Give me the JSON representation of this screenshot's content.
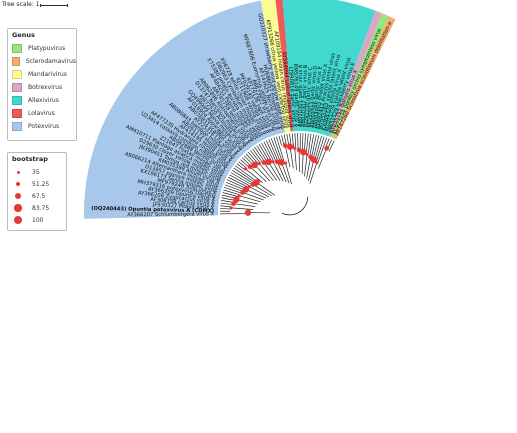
{
  "tree_scale": {
    "label": "Tree scale: 1"
  },
  "genus_legend": {
    "title": "Genus",
    "items": [
      {
        "label": "Platypuvirus",
        "color": "#98e67f"
      },
      {
        "label": "Sclerodamavirus",
        "color": "#f6ad6e"
      },
      {
        "label": "Mandarivirus",
        "color": "#fcfc94"
      },
      {
        "label": "Botrexvirus",
        "color": "#d7a7c5"
      },
      {
        "label": "Allexivirus",
        "color": "#41d8d0"
      },
      {
        "label": "Lolavirus",
        "color": "#ec5a5a"
      },
      {
        "label": "Potexvirus",
        "color": "#a7c8ea"
      }
    ]
  },
  "bootstrap_legend": {
    "title": "bootstrap",
    "items": [
      {
        "label": "35",
        "value": 35
      },
      {
        "label": "51.25",
        "value": 51.25
      },
      {
        "label": "67.5",
        "value": 67.5
      },
      {
        "label": "83.75",
        "value": 83.75
      },
      {
        "label": "100",
        "value": 100
      }
    ]
  },
  "colors": {
    "node": "#e53935",
    "branch": "#222222"
  },
  "highlighted_taxon": "(OQ240443) Opuntia potexvirus A (CDMX)",
  "taxa": [
    {
      "label": "AY366207 Schlumbergera virus X",
      "genus": "Potexvirus"
    },
    {
      "label": "(OQ240443) Opuntia potexvirus A (CDMX)",
      "genus": "Potexvirus"
    },
    {
      "label": "JF930327 Pitaya virus X",
      "genus": "Potexvirus"
    },
    {
      "label": "AF308158 cactus virus X",
      "genus": "Potexvirus"
    },
    {
      "label": "AY366208 Zygocactus virus X",
      "genus": "Potexvirus"
    },
    {
      "label": "AY366209 Opuntia virus X",
      "genus": "Potexvirus"
    },
    {
      "label": "MH379316 potexvirus Dactylis",
      "genus": "Potexvirus"
    },
    {
      "label": "MF979248 Tulip virus X",
      "genus": "Potexvirus"
    },
    {
      "label": "KX196173 Senna mosaic virus",
      "genus": "Potexvirus"
    },
    {
      "label": "D13957 papaya mosaic virus",
      "genus": "Potexvirus"
    },
    {
      "label": "AB066214 Alternanthera mosaic virus",
      "genus": "Potexvirus"
    },
    {
      "label": "KM035388 Allium virus X",
      "genus": "Potexvirus"
    },
    {
      "label": "JN390451 Tamus red mosaic virus",
      "genus": "Potexvirus"
    },
    {
      "label": "D29630 clover yellow mosaic virus",
      "genus": "Potexvirus"
    },
    {
      "label": "AM410711 Plantago asiatica mosaic virus",
      "genus": "Potexvirus"
    },
    {
      "label": "Z21647 Foxtail mosaic virus",
      "genus": "Potexvirus"
    },
    {
      "label": "AB082888 Nerine virus X",
      "genus": "Potexvirus"
    },
    {
      "label": "U23414 cassava common mosaic virus",
      "genus": "Potexvirus"
    },
    {
      "label": "AF477235 Hydrangea ringspot virus",
      "genus": "Potexvirus"
    },
    {
      "label": "AF414195 Hosta virus X",
      "genus": "Potexvirus"
    },
    {
      "label": "AB261173 Hosta virus X",
      "genus": "Potexvirus"
    },
    {
      "label": "AB080843 bamboo mosaic virus",
      "genus": "Potexvirus"
    },
    {
      "label": "AY225316 Lily virus X",
      "genus": "Potexvirus"
    },
    {
      "label": "AB076831 scallion virus X",
      "genus": "Potexvirus"
    },
    {
      "label": "AF016904 Asparagus virus 3",
      "genus": "Potexvirus"
    },
    {
      "label": "GQ499999 Malva mosaic virus",
      "genus": "Potexvirus"
    },
    {
      "label": "KJ872520 Actinidia virus X",
      "genus": "Potexvirus"
    },
    {
      "label": "D13747 Narcissus mosaic virus",
      "genus": "Potexvirus"
    },
    {
      "label": "AB062896 Alstroemeria virus X",
      "genus": "Potexvirus"
    },
    {
      "label": "AM745758 lettuce virus X",
      "genus": "Potexvirus"
    },
    {
      "label": "AF484251 Pepino mosaic virus",
      "genus": "Potexvirus"
    },
    {
      "label": "X75380 potato aucuba mosaic virus",
      "genus": "Potexvirus"
    },
    {
      "label": "D82963 Cymbidium mosaic virus",
      "genus": "Potexvirus"
    },
    {
      "label": "X06728 white clover mosaic virus",
      "genus": "Potexvirus"
    },
    {
      "label": "KJ711908 vanilla virus X",
      "genus": "Potexvirus"
    },
    {
      "label": "MF029140 vanilla virus X",
      "genus": "Potexvirus"
    },
    {
      "label": "KP179136 yam virus X",
      "genus": "Potexvirus"
    },
    {
      "label": "AB623822 lily virus X",
      "genus": "Potexvirus"
    },
    {
      "label": "MF687808 Euonymus yellow vein virus",
      "genus": "Potexvirus"
    },
    {
      "label": "AF143625 Nerine virus X",
      "genus": "Potexvirus"
    },
    {
      "label": "HQ686057 Ensete virus X",
      "genus": "Potexvirus"
    },
    {
      "label": "GQ220327 strawberry mild yellow edge virus",
      "genus": "Potexvirus"
    },
    {
      "label": "KF913266 citrus yellow vein clearing virus",
      "genus": "Mandarivirus"
    },
    {
      "label": "AF109194 Indian citrus ringspot virus",
      "genus": "Mandarivirus"
    },
    {
      "label": "AY584094 Lolium latent virus",
      "genus": "Lolavirus"
    },
    {
      "label": "LT890818 garlic virus X",
      "genus": "Allexivirus"
    },
    {
      "label": "KM576149 garlic virus X",
      "genus": "Allexivirus"
    },
    {
      "label": "AB010301 garlic virus A",
      "genus": "Allexivirus"
    },
    {
      "label": "AB010302 garlic virus B",
      "genus": "Allexivirus"
    },
    {
      "label": "AJ292230 garlic virus C",
      "genus": "Allexivirus"
    },
    {
      "label": "KF550413 garlic virus D",
      "genus": "Allexivirus"
    },
    {
      "label": "AB004566 garlic virus E",
      "genus": "Allexivirus"
    },
    {
      "label": "AB004805 shallot virus X",
      "genus": "Allexivirus"
    },
    {
      "label": "KF692443 Arachis pintoi virus",
      "genus": "Allexivirus"
    },
    {
      "label": "MT955263 vanilla latent virus",
      "genus": "Allexivirus"
    },
    {
      "label": "KY068329 alfalfa virus X",
      "genus": "Allexivirus"
    },
    {
      "label": "MT015279 vanilla latent virus",
      "genus": "Allexivirus"
    },
    {
      "label": "JN651529 blackberry virus E",
      "genus": "Allexivirus"
    },
    {
      "label": "AY035792 Botrytis virus X",
      "genus": "Botrexvirus"
    },
    {
      "label": "KC923234 donkey orchid symptomless virus",
      "genus": "Platypuvirus"
    },
    {
      "label": "AY147260 Sclerotinia sclerotiorum debilitation-a",
      "genus": "Sclerodamavirus"
    }
  ]
}
